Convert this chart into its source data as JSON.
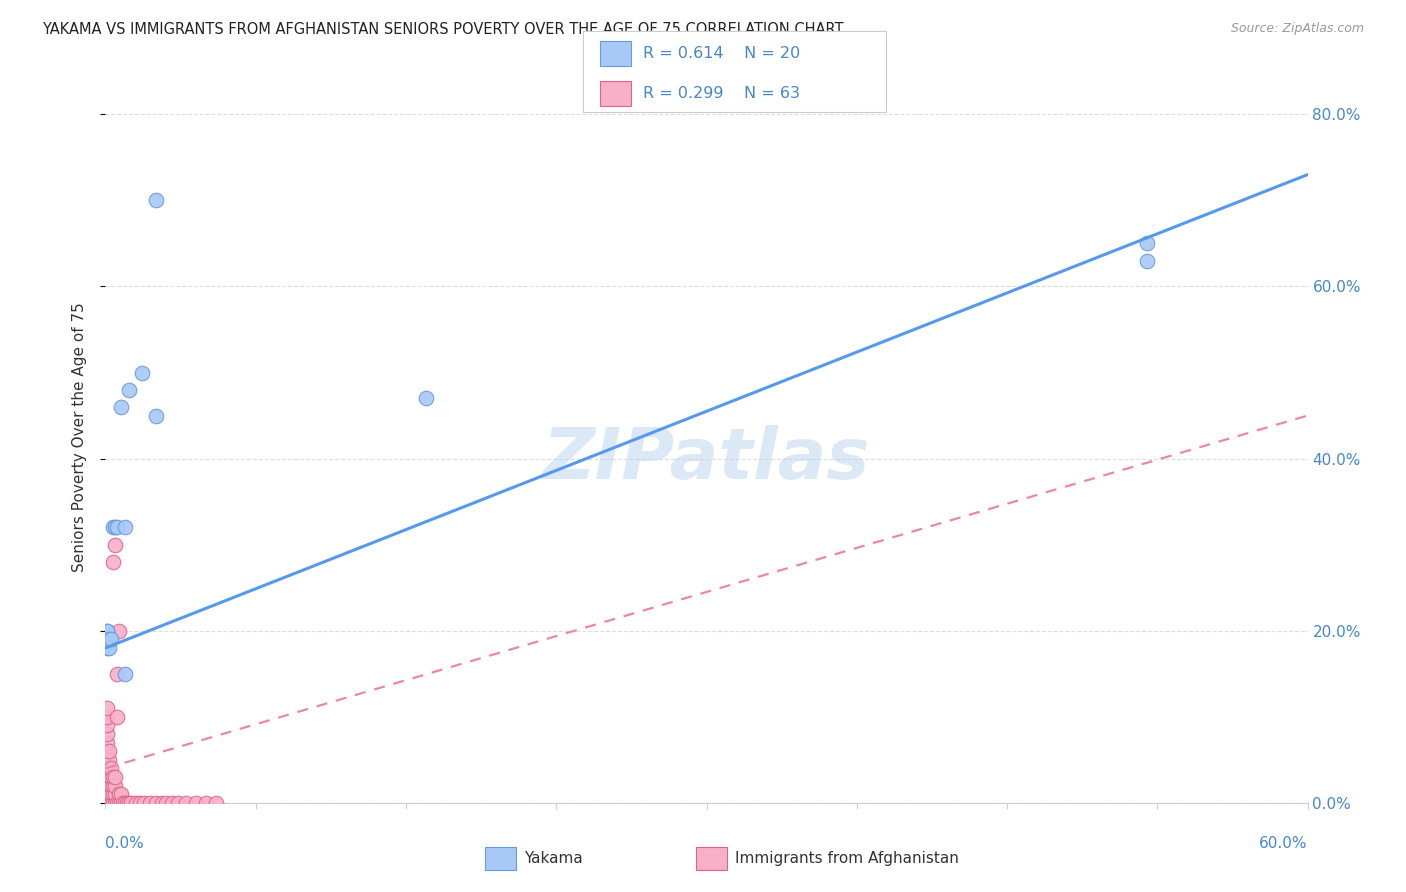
{
  "title": "YAKAMA VS IMMIGRANTS FROM AFGHANISTAN SENIORS POVERTY OVER THE AGE OF 75 CORRELATION CHART",
  "source": "Source: ZipAtlas.com",
  "ylabel": "Seniors Poverty Over the Age of 75",
  "color_yakama": "#a8c8f8",
  "color_yakama_edge": "#6699dd",
  "color_afghanistan": "#f8b0c8",
  "color_afghanistan_edge": "#dd6688",
  "color_line_yakama": "#5599ee",
  "color_line_afghanistan": "#ee8899",
  "watermark": "ZIPatlas",
  "xmin": 0.0,
  "xmax": 0.6,
  "ymin": 0.0,
  "ymax": 0.85,
  "right_yticks": [
    0.0,
    0.2,
    0.4,
    0.6,
    0.8
  ],
  "right_yticklabels": [
    "0.0%",
    "20.0%",
    "40.0%",
    "60.0%",
    "80.0%"
  ],
  "yakama_x": [
    0.001,
    0.001,
    0.001,
    0.001,
    0.002,
    0.002,
    0.003,
    0.004,
    0.005,
    0.006,
    0.008,
    0.01,
    0.01,
    0.012,
    0.018,
    0.025,
    0.025,
    0.16,
    0.52,
    0.52
  ],
  "yakama_y": [
    0.19,
    0.2,
    0.2,
    0.18,
    0.19,
    0.18,
    0.19,
    0.32,
    0.32,
    0.32,
    0.46,
    0.15,
    0.32,
    0.48,
    0.5,
    0.7,
    0.45,
    0.47,
    0.63,
    0.65
  ],
  "afghanistan_x": [
    0.001,
    0.001,
    0.001,
    0.001,
    0.001,
    0.001,
    0.001,
    0.001,
    0.001,
    0.001,
    0.001,
    0.001,
    0.001,
    0.001,
    0.001,
    0.002,
    0.002,
    0.002,
    0.002,
    0.002,
    0.002,
    0.002,
    0.003,
    0.003,
    0.003,
    0.003,
    0.003,
    0.004,
    0.004,
    0.004,
    0.004,
    0.004,
    0.005,
    0.005,
    0.005,
    0.005,
    0.005,
    0.006,
    0.006,
    0.006,
    0.007,
    0.007,
    0.007,
    0.008,
    0.008,
    0.009,
    0.01,
    0.011,
    0.012,
    0.013,
    0.015,
    0.017,
    0.019,
    0.022,
    0.025,
    0.028,
    0.03,
    0.033,
    0.036,
    0.04,
    0.045,
    0.05,
    0.055
  ],
  "afghanistan_y": [
    0.0,
    0.0,
    0.0,
    0.01,
    0.01,
    0.02,
    0.03,
    0.04,
    0.05,
    0.06,
    0.07,
    0.08,
    0.09,
    0.1,
    0.11,
    0.0,
    0.01,
    0.02,
    0.03,
    0.04,
    0.05,
    0.06,
    0.0,
    0.01,
    0.02,
    0.03,
    0.04,
    0.0,
    0.01,
    0.02,
    0.03,
    0.28,
    0.0,
    0.01,
    0.02,
    0.03,
    0.3,
    0.0,
    0.1,
    0.15,
    0.0,
    0.01,
    0.2,
    0.0,
    0.01,
    0.0,
    0.0,
    0.0,
    0.0,
    0.0,
    0.0,
    0.0,
    0.0,
    0.0,
    0.0,
    0.0,
    0.0,
    0.0,
    0.0,
    0.0,
    0.0,
    0.0,
    0.0
  ],
  "line_yakama_x0": 0.0,
  "line_yakama_y0": 0.18,
  "line_yakama_x1": 0.6,
  "line_yakama_y1": 0.73,
  "line_afg_x0": 0.0,
  "line_afg_y0": 0.04,
  "line_afg_x1": 0.6,
  "line_afg_y1": 0.45,
  "legend_r1": "R = 0.614",
  "legend_n1": "N = 20",
  "legend_r2": "R = 0.299",
  "legend_n2": "N = 63"
}
